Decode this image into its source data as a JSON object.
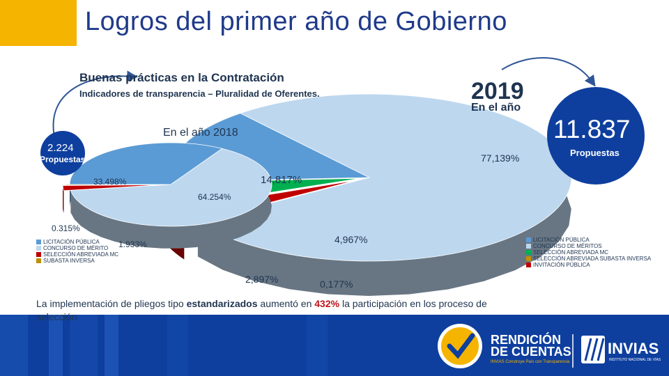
{
  "header": {
    "title": "Logros del primer año de Gobierno"
  },
  "section": {
    "title": "Buenas prácticas en la Contratación",
    "subtitle": "Indicadores de transparencia – Pluralidad de Oferentes."
  },
  "year_2019": {
    "year": "2019",
    "caption": "En el año",
    "total": "11.837",
    "total_label": "Propuestas"
  },
  "year_2018": {
    "caption": "En el año 2018",
    "total": "2.224",
    "total_label": "Propuestas"
  },
  "colors": {
    "licitacion": "#5b9bd5",
    "concurso": "#bdd7ee",
    "seleccion": "#c00000",
    "subasta": "#bf9000",
    "invitacion": "#00b050",
    "accent": "#f5b400",
    "band": "#0e3f9e"
  },
  "chart_data": [
    {
      "type": "pie",
      "title": "En el año 2018",
      "slices": [
        {
          "name": "LICITACIÓN PÚBLICA",
          "value": 33.498,
          "label": "33.498%"
        },
        {
          "name": "CONCURSO DE MÉRITO",
          "value": 64.254,
          "label": "64.254%"
        },
        {
          "name": "SELECCIÓN ABREVIADA MC",
          "value": 1.933,
          "label": "1.933%"
        },
        {
          "name": "SUBASTA INVERSA",
          "value": 0.315,
          "label": "0.315%"
        }
      ]
    },
    {
      "type": "pie",
      "title": "En el año 2019",
      "slices": [
        {
          "name": "LICITACIÓN PÚBLICA",
          "value": 14.817,
          "label": "14,817%"
        },
        {
          "name": "CONCURSO DE MÉRITOS",
          "value": 77.139,
          "label": "77,139%"
        },
        {
          "name": "SELECCIÓN ABREVIADA MC",
          "value": 2.897,
          "label": "2,897%"
        },
        {
          "name": "SELECCIÓN ABREVIADA SUBASTA INVERSA",
          "value": 0.177,
          "label": "0,177%"
        },
        {
          "name": "INVITACIÓN PÚBLICA",
          "value": 4.967,
          "label": "4,967%"
        }
      ]
    }
  ],
  "legend_2018": [
    "LICITACIÓN PÚBLICA",
    "CONCURSO DE MÉRITO",
    "SELECCIÓN ABREVIADA MC",
    "SUBASTA INVERSA"
  ],
  "legend_2019": [
    "LICITACIÓN PÚBLICA",
    "CONCURSO DE MÉRITOS",
    "SELECCIÓN ABREVIADA MC",
    "SELECCIÓN ABREVIADA SUBASTA INVERSA",
    "INVITACIÓN PÚBLICA"
  ],
  "footer": {
    "pre": "La implementación de pliegos tipo ",
    "bold": "estandarizados",
    "mid": " aumentó en ",
    "highlight": "432%",
    "post": " la participación en los proceso de selección"
  },
  "logos": {
    "rendicion_1": "RENDICIÓN",
    "rendicion_2": "DE CUENTAS",
    "rendicion_tag": "INVIAS Construye País con Transparencia",
    "invias": "INVIAS",
    "invias_tag": "INSTITUTO NACIONAL DE VÍAS"
  }
}
